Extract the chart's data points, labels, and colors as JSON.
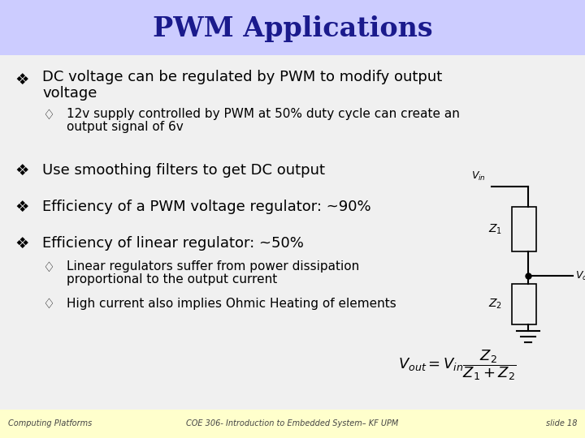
{
  "title": "PWM Applications",
  "title_color": "#1a1a8c",
  "title_bg_color": "#ccccff",
  "slide_bg_color": "#f0f0f0",
  "footer_bg_color": "#ffffcc",
  "footer_left": "Computing Platforms",
  "footer_center": "COE 306- Introduction to Embedded System– KF UPM",
  "footer_right": "slide 18",
  "text_color": "#000000",
  "bullet_color": "#000000",
  "figwidth": 7.2,
  "figheight": 5.4,
  "dpi": 100
}
